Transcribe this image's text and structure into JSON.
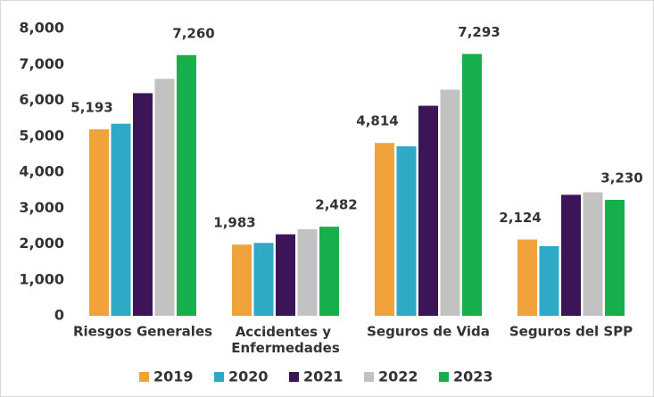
{
  "chart_data": {
    "type": "bar",
    "categories": [
      "Riesgos Generales",
      "Accidentes y Enfermedades",
      "Seguros de Vida",
      "Seguros del SPP"
    ],
    "series": [
      {
        "name": "2019",
        "color": "#f0a33a",
        "values": [
          5193,
          1983,
          4814,
          2124
        ],
        "value_labels": [
          "5,193",
          "1,983",
          "4,814",
          "2,124"
        ]
      },
      {
        "name": "2020",
        "color": "#2eaac7",
        "values": [
          5350,
          2030,
          4720,
          1940
        ]
      },
      {
        "name": "2021",
        "color": "#3b1558",
        "values": [
          6200,
          2270,
          5850,
          3370
        ]
      },
      {
        "name": "2022",
        "color": "#c2c2c2",
        "values": [
          6600,
          2410,
          6300,
          3440
        ]
      },
      {
        "name": "2023",
        "color": "#15b04b",
        "values": [
          7260,
          2482,
          7293,
          3230
        ],
        "value_labels": [
          "7,260",
          "2,482",
          "7,293",
          "3,230"
        ]
      }
    ],
    "ylim": [
      0,
      8000
    ],
    "yticks": [
      0,
      {
        "value": 1000,
        "label": "1,000"
      },
      {
        "value": 2000,
        "label": "2,000"
      },
      {
        "value": 3000,
        "label": "3,000"
      },
      {
        "value": 4000,
        "label": "4,000"
      },
      {
        "value": 5000,
        "label": "5,000"
      },
      {
        "value": 6000,
        "label": "6,000"
      },
      {
        "value": 7000,
        "label": "7,000"
      },
      {
        "value": 8000,
        "label": "8,000"
      }
    ],
    "grid": false,
    "legend": "bottom"
  }
}
